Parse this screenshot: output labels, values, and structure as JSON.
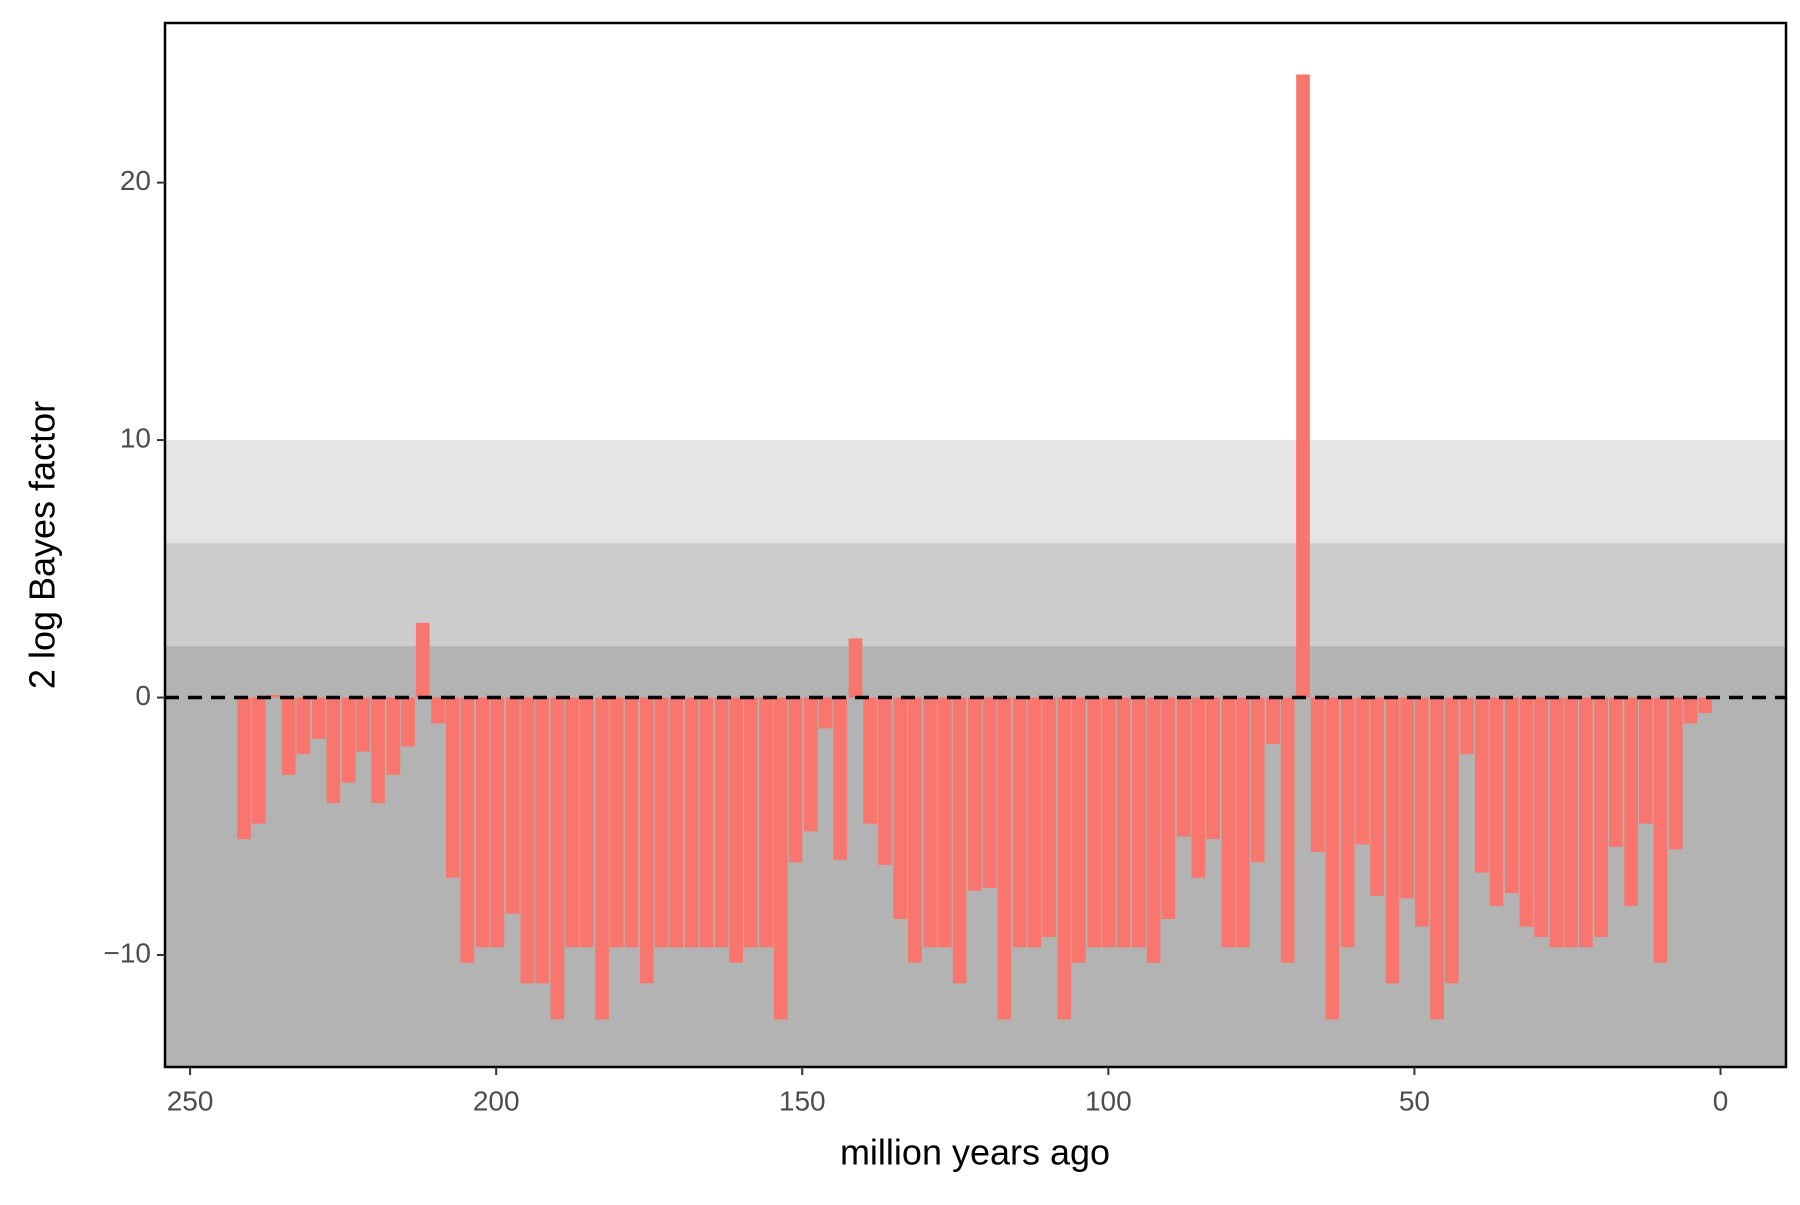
{
  "chart_data": {
    "type": "bar",
    "x_label": "million years ago",
    "y_label": "2 log Bayes factor",
    "x": [
      241.2,
      238.8,
      236.3,
      233.9,
      231.5,
      229.0,
      226.6,
      224.1,
      221.7,
      219.3,
      216.8,
      214.4,
      212.0,
      209.5,
      207.1,
      204.7,
      202.2,
      199.8,
      197.3,
      194.9,
      192.5,
      190.0,
      187.6,
      185.2,
      182.7,
      180.3,
      177.9,
      175.4,
      173.0,
      170.6,
      168.1,
      165.7,
      163.2,
      160.8,
      158.4,
      155.9,
      153.5,
      151.1,
      148.6,
      146.2,
      143.8,
      141.3,
      138.9,
      136.5,
      134.0,
      131.6,
      129.1,
      126.7,
      124.3,
      121.8,
      119.4,
      117.0,
      114.5,
      112.1,
      109.7,
      107.2,
      104.8,
      102.3,
      99.9,
      97.5,
      95.0,
      92.6,
      90.2,
      87.7,
      85.3,
      82.9,
      80.4,
      78.0,
      75.6,
      73.1,
      70.7,
      68.2,
      65.8,
      63.4,
      60.9,
      58.5,
      56.1,
      53.6,
      51.2,
      48.8,
      46.3,
      43.9,
      41.4,
      39.0,
      36.6,
      34.1,
      31.7,
      29.3,
      26.8,
      24.4,
      22.0,
      19.5,
      17.1,
      14.6,
      12.2,
      9.8,
      7.3,
      4.9,
      2.5
    ],
    "values": [
      -5.5,
      -4.9,
      0.1,
      -3.0,
      -2.2,
      -1.6,
      -4.1,
      -3.3,
      -2.1,
      -4.1,
      -3.0,
      -1.9,
      2.9,
      -1.0,
      -7.0,
      -10.3,
      -9.7,
      -9.7,
      -8.4,
      -11.1,
      -11.1,
      -12.5,
      -9.7,
      -9.7,
      -12.5,
      -9.7,
      -9.7,
      -11.1,
      -9.7,
      -9.7,
      -9.7,
      -9.7,
      -9.7,
      -10.3,
      -9.7,
      -9.7,
      -12.5,
      -6.4,
      -5.2,
      -1.2,
      -6.3,
      2.3,
      -4.9,
      -6.5,
      -8.6,
      -10.3,
      -9.7,
      -9.7,
      -11.1,
      -7.5,
      -7.4,
      -12.5,
      -9.7,
      -9.7,
      -9.3,
      -12.5,
      -10.3,
      -9.7,
      -9.7,
      -9.7,
      -9.7,
      -10.3,
      -8.6,
      -5.4,
      -7.0,
      -5.5,
      -9.7,
      -9.7,
      -6.4,
      -1.8,
      -10.3,
      24.2,
      -6.0,
      -12.5,
      -9.7,
      -5.7,
      -7.7,
      -11.1,
      -7.8,
      -8.9,
      -12.5,
      -11.1,
      -2.2,
      -6.8,
      -8.1,
      -7.6,
      -8.9,
      -9.3,
      -9.7,
      -9.7,
      -9.7,
      -9.3,
      -5.8,
      -8.1,
      -4.9,
      -10.3,
      -5.9,
      -1.0,
      -0.6
    ],
    "color": "#f8766d",
    "xlim": [
      254.1,
      -10.7
    ],
    "xticks": [
      250,
      200,
      150,
      100,
      50,
      0
    ],
    "ylim": [
      -14.35,
      26.2
    ],
    "yticks": [
      {
        "value": -10,
        "label": "−10"
      },
      0,
      10,
      20
    ],
    "band_thresholds": [
      2,
      6,
      10
    ],
    "band_colors": [
      "#b3b3b3",
      "#cccccc",
      "#e5e5e5"
    ],
    "reference_line": 0
  }
}
